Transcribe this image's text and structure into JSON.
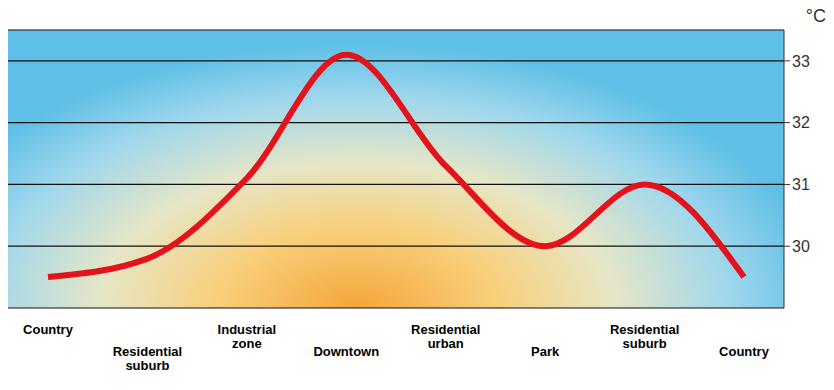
{
  "chart_data": {
    "type": "line",
    "y_label": "°C",
    "categories": [
      "Country",
      "Residential suburb",
      "Industrial zone",
      "Downtown",
      "Residential urban",
      "Park",
      "Residential suburb",
      "Country"
    ],
    "values": [
      29.5,
      29.8,
      31.1,
      33.1,
      31.3,
      30.0,
      31.0,
      29.5
    ],
    "color": "#e3121b",
    "marker": "none",
    "line_style": "solid",
    "ylim": [
      29,
      33.5
    ],
    "yticks": [
      30,
      31,
      32,
      33
    ],
    "grid": true
  }
}
